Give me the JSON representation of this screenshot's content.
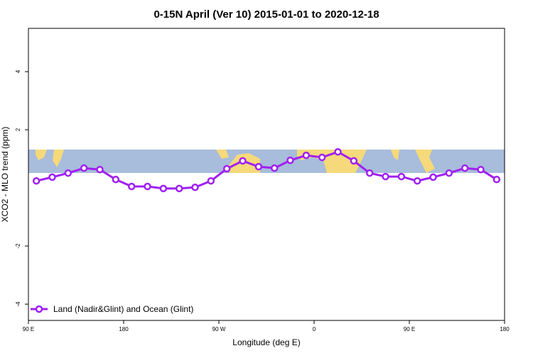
{
  "chart_data": {
    "type": "line",
    "title": "0-15N April (Ver 10)   2015-01-01 to 2020-12-18",
    "x_label": "Longitude (deg E)",
    "y_label": "XCO2 - MLO trend (ppm)",
    "x": [
      97.5,
      112.5,
      127.5,
      142.5,
      157.5,
      172.5,
      187.5,
      202.5,
      217.5,
      232.5,
      247.5,
      262.5,
      277.5,
      292.5,
      307.5,
      322.5,
      337.5,
      352.5,
      367.5,
      382.5,
      397.5,
      412.5,
      427.5,
      442.5,
      457.5,
      472.5,
      487.5,
      502.5,
      517.5,
      532.5
    ],
    "series": [
      {
        "name": "Land (Nadir&Glint) and Ocean (Glint)",
        "color": "#a020f0",
        "values": [
          0.24,
          0.37,
          0.51,
          0.68,
          0.63,
          0.29,
          0.05,
          0.05,
          -0.02,
          -0.02,
          0.02,
          0.24,
          0.66,
          0.93,
          0.73,
          0.68,
          0.95,
          1.12,
          1.05,
          1.24,
          0.93,
          0.51,
          0.39,
          0.39,
          0.24,
          0.37,
          0.51,
          0.68,
          0.63,
          0.29
        ]
      }
    ],
    "xlim": [
      90,
      540
    ],
    "xticks": [
      {
        "value": 90,
        "label": "90 E"
      },
      {
        "value": 180,
        "label": "180"
      },
      {
        "value": 270,
        "label": "90 W"
      },
      {
        "value": 360,
        "label": "0"
      },
      {
        "value": 450,
        "label": "90 E"
      },
      {
        "value": 540,
        "label": "180"
      }
    ],
    "ylim": [
      -4.56,
      5.49
    ],
    "yticks": [
      -4,
      -2,
      2,
      4
    ],
    "legend": "bottom-left"
  }
}
